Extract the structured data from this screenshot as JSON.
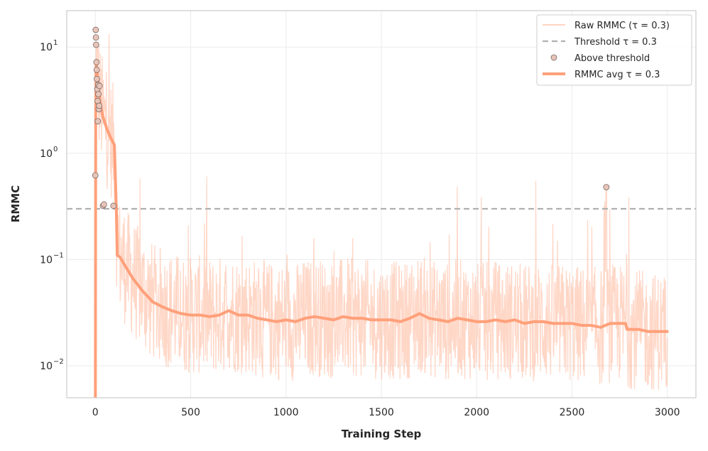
{
  "chart_data": {
    "type": "line",
    "title": "",
    "xlabel": "Training Step",
    "ylabel": "RMMC",
    "yscale": "log",
    "xlim": [
      -150,
      3150
    ],
    "ylim": [
      0.005,
      22
    ],
    "grid": true,
    "legend_position": "top-right",
    "x_ticks": [
      {
        "value": 0,
        "label": "0"
      },
      {
        "value": 500,
        "label": "500"
      },
      {
        "value": 1000,
        "label": "1000"
      },
      {
        "value": 1500,
        "label": "1500"
      },
      {
        "value": 2000,
        "label": "2000"
      },
      {
        "value": 2500,
        "label": "2500"
      },
      {
        "value": 3000,
        "label": "3000"
      }
    ],
    "y_ticks": [
      {
        "value": 10,
        "base": "10",
        "exp": "1"
      },
      {
        "value": 1,
        "base": "10",
        "exp": "0"
      },
      {
        "value": 0.1,
        "base": "10",
        "exp": "−1"
      },
      {
        "value": 0.01,
        "base": "10",
        "exp": "−2"
      }
    ],
    "colors": {
      "raw": "#ffa07a",
      "avg": "#ffa07a",
      "threshold": "#b0b0b0",
      "marker_fill": "#e8c4b8",
      "marker_edge": "#7a6a66"
    },
    "legend": [
      {
        "key": "raw",
        "label": "Raw RMMC (τ = 0.3)"
      },
      {
        "key": "threshold",
        "label": "Threshold τ = 0.3"
      },
      {
        "key": "above",
        "label": "Above threshold"
      },
      {
        "key": "avg",
        "label": "RMMC avg τ = 0.3"
      }
    ],
    "threshold": 0.3,
    "above_threshold_points": [
      {
        "x": 0,
        "y": 0.62
      },
      {
        "x": 2,
        "y": 14.5
      },
      {
        "x": 3,
        "y": 12.3
      },
      {
        "x": 4,
        "y": 10.5
      },
      {
        "x": 6,
        "y": 7.2
      },
      {
        "x": 7,
        "y": 6.1
      },
      {
        "x": 8,
        "y": 5.0
      },
      {
        "x": 10,
        "y": 4.0
      },
      {
        "x": 12,
        "y": 3.1
      },
      {
        "x": 13,
        "y": 2.0
      },
      {
        "x": 15,
        "y": 4.4
      },
      {
        "x": 16,
        "y": 3.6
      },
      {
        "x": 18,
        "y": 2.6
      },
      {
        "x": 20,
        "y": 2.8
      },
      {
        "x": 22,
        "y": 4.3
      },
      {
        "x": 40,
        "y": 0.32
      },
      {
        "x": 45,
        "y": 0.33
      },
      {
        "x": 95,
        "y": 0.32
      },
      {
        "x": 2680,
        "y": 0.48
      }
    ],
    "avg_series": {
      "name": "RMMC avg τ = 0.3",
      "x": [
        0,
        2,
        4,
        8,
        15,
        25,
        40,
        60,
        80,
        100,
        110,
        115,
        130,
        160,
        200,
        250,
        300,
        350,
        400,
        450,
        500,
        550,
        600,
        650,
        700,
        750,
        800,
        850,
        900,
        950,
        1000,
        1050,
        1100,
        1150,
        1200,
        1250,
        1300,
        1350,
        1400,
        1450,
        1500,
        1550,
        1600,
        1650,
        1700,
        1750,
        1800,
        1850,
        1900,
        1950,
        2000,
        2050,
        2100,
        2150,
        2200,
        2250,
        2300,
        2350,
        2400,
        2450,
        2500,
        2550,
        2600,
        2650,
        2700,
        2720,
        2760,
        2780,
        2790,
        2800,
        2850,
        2900,
        2950,
        3000
      ],
      "y": [
        0.004,
        2.5,
        7.0,
        6.0,
        4.5,
        3.0,
        2.2,
        1.7,
        1.4,
        1.2,
        0.3,
        0.11,
        0.105,
        0.085,
        0.065,
        0.05,
        0.04,
        0.036,
        0.033,
        0.031,
        0.03,
        0.03,
        0.029,
        0.03,
        0.033,
        0.03,
        0.03,
        0.028,
        0.027,
        0.026,
        0.027,
        0.026,
        0.028,
        0.029,
        0.028,
        0.027,
        0.029,
        0.028,
        0.028,
        0.027,
        0.027,
        0.027,
        0.026,
        0.028,
        0.031,
        0.028,
        0.027,
        0.026,
        0.028,
        0.027,
        0.026,
        0.026,
        0.027,
        0.026,
        0.027,
        0.025,
        0.026,
        0.026,
        0.025,
        0.025,
        0.025,
        0.024,
        0.024,
        0.023,
        0.025,
        0.025,
        0.025,
        0.025,
        0.022,
        0.022,
        0.022,
        0.021,
        0.021,
        0.021
      ]
    }
  }
}
